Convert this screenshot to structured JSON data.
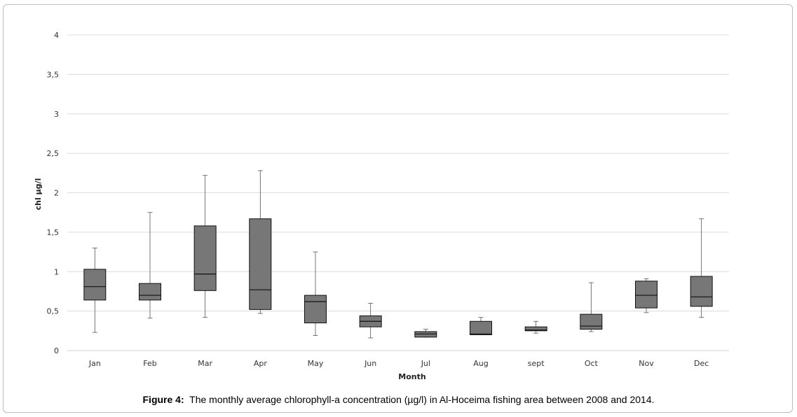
{
  "chart_data": {
    "type": "boxplot",
    "xlabel": "Month",
    "ylabel": "chl µg/l",
    "ylim": [
      0,
      4
    ],
    "yticks": [
      "0",
      "0,5",
      "1",
      "1,5",
      "2",
      "2,5",
      "3",
      "3,5",
      "4"
    ],
    "grid": "horizontal",
    "legend": "none",
    "box_color": "#777777",
    "categories": [
      "Jan",
      "Feb",
      "Mar",
      "Apr",
      "May",
      "Jun",
      "Jul",
      "Aug",
      "sept",
      "Oct",
      "Nov",
      "Dec"
    ],
    "boxes": [
      {
        "min": 0.23,
        "q1": 0.64,
        "median": 0.81,
        "q3": 1.03,
        "max": 1.3
      },
      {
        "min": 0.41,
        "q1": 0.64,
        "median": 0.7,
        "q3": 0.85,
        "max": 1.75
      },
      {
        "min": 0.42,
        "q1": 0.76,
        "median": 0.97,
        "q3": 1.58,
        "max": 2.22
      },
      {
        "min": 0.47,
        "q1": 0.52,
        "median": 0.77,
        "q3": 1.67,
        "max": 2.28
      },
      {
        "min": 0.19,
        "q1": 0.35,
        "median": 0.62,
        "q3": 0.7,
        "max": 1.25
      },
      {
        "min": 0.16,
        "q1": 0.3,
        "median": 0.37,
        "q3": 0.44,
        "max": 0.6
      },
      {
        "min": 0.17,
        "q1": 0.17,
        "median": 0.21,
        "q3": 0.24,
        "max": 0.27
      },
      {
        "min": 0.2,
        "q1": 0.2,
        "median": 0.21,
        "q3": 0.37,
        "max": 0.42
      },
      {
        "min": 0.22,
        "q1": 0.25,
        "median": 0.26,
        "q3": 0.3,
        "max": 0.37
      },
      {
        "min": 0.24,
        "q1": 0.27,
        "median": 0.31,
        "q3": 0.46,
        "max": 0.86
      },
      {
        "min": 0.48,
        "q1": 0.54,
        "median": 0.7,
        "q3": 0.88,
        "max": 0.91
      },
      {
        "min": 0.42,
        "q1": 0.56,
        "median": 0.68,
        "q3": 0.94,
        "max": 1.67
      }
    ]
  },
  "caption": {
    "label": "Figure 4:",
    "text": "The monthly average chlorophyll-a concentration (µg/l) in Al-Hoceima fishing area between 2008 and 2014."
  }
}
